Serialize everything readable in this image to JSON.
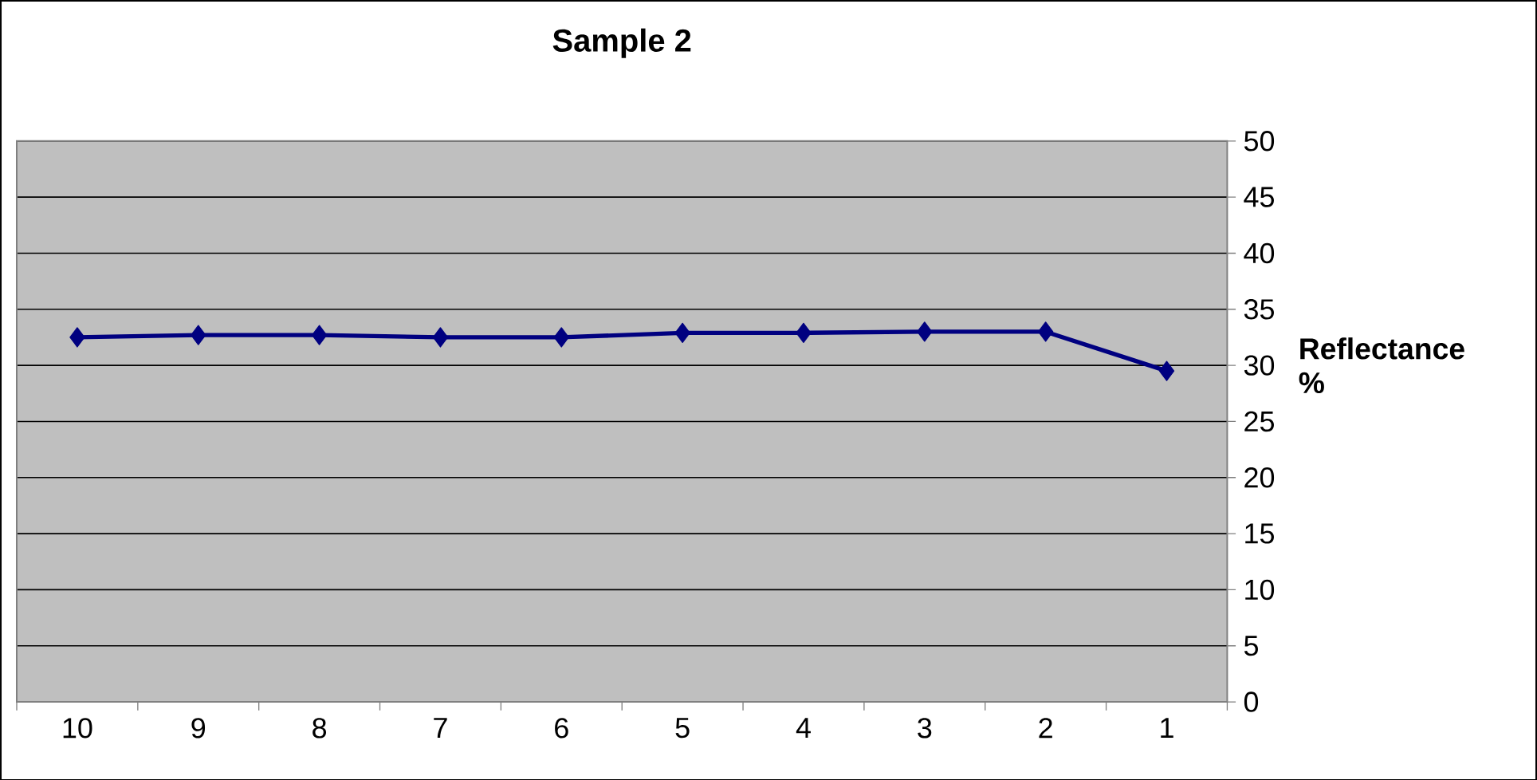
{
  "chart_data": {
    "type": "line",
    "title": "Sample 2",
    "ylabel": "Reflectance %",
    "categories": [
      "10",
      "9",
      "8",
      "7",
      "6",
      "5",
      "4",
      "3",
      "2",
      "1"
    ],
    "series": [
      {
        "color": "#000080",
        "values": [
          32.5,
          32.7,
          32.7,
          32.5,
          32.5,
          32.9,
          32.9,
          33.0,
          33.0,
          29.5
        ]
      }
    ],
    "ylim": [
      0,
      50
    ],
    "yticks": [
      0,
      5,
      10,
      15,
      20,
      25,
      30,
      35,
      40,
      45,
      50
    ],
    "grid": "y",
    "marker": "diamond",
    "line_style": "solid"
  }
}
